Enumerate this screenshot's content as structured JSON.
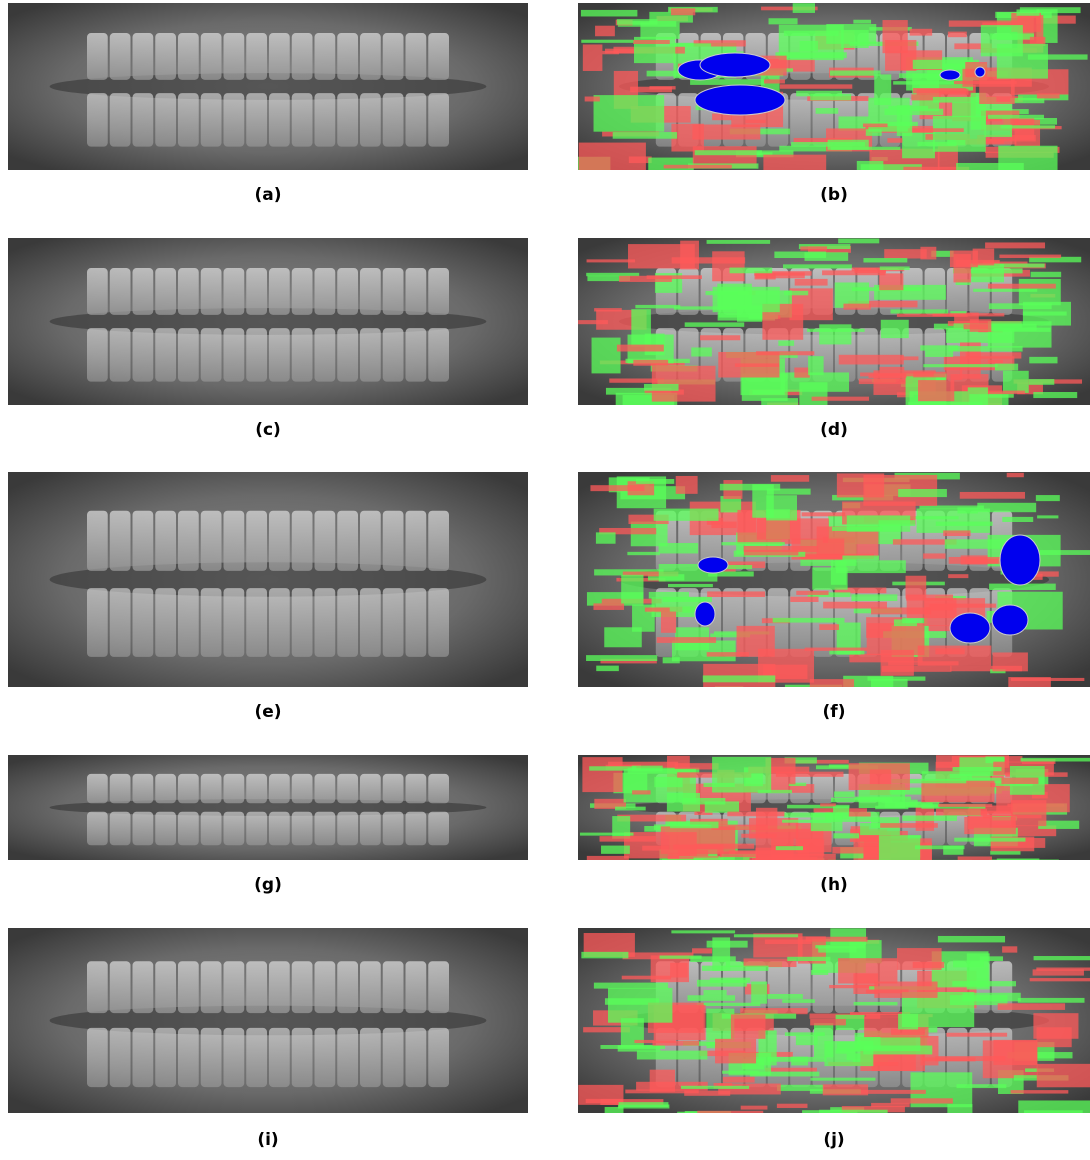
{
  "panels": [
    "(a)",
    "(b)",
    "(c)",
    "(d)",
    "(e)",
    "(f)",
    "(g)",
    "(h)",
    "(i)",
    "(j)"
  ]
}
